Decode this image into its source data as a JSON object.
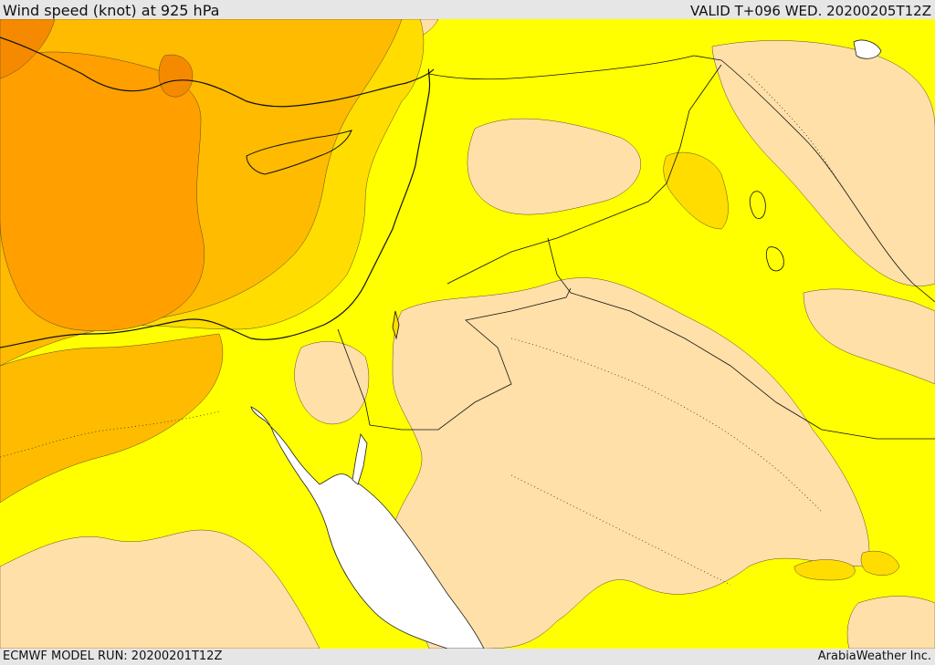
{
  "header": {
    "title": "Wind speed (knot) at 925 hPa",
    "valid": "VALID T+096 WED. 20200205T12Z"
  },
  "footer": {
    "model_run": "ECMWF MODEL RUN: 20200201T12Z",
    "credit": "ArabiaWeather Inc."
  },
  "colors": {
    "band_light": "#ffe0a8",
    "band_yellow": "#ffff00",
    "band_gold": "#ffdd00",
    "band_amber": "#ffbb00",
    "band_orange": "#ff9f00",
    "band_dark": "#f58a00",
    "water": "#ffffff"
  }
}
